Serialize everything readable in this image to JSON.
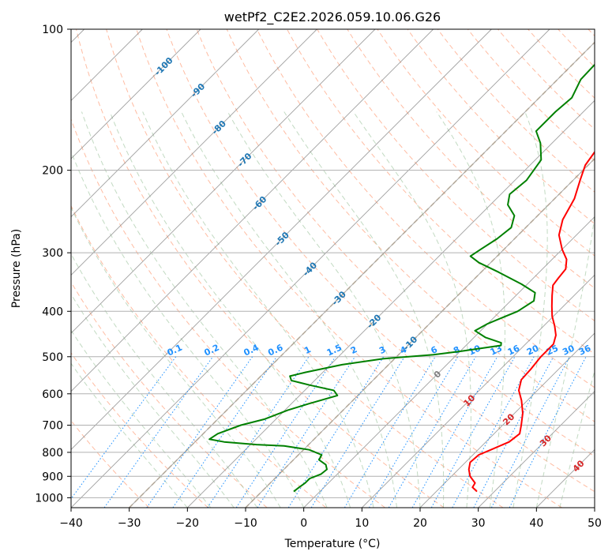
{
  "chart_data": {
    "type": "line",
    "title": "wetPf2_C2E2.2026.059.10.06.G26",
    "xlabel": "Temperature (°C)",
    "ylabel": "Pressure (hPa)",
    "xlim": [
      -40,
      50
    ],
    "ylim": [
      1050,
      100
    ],
    "x_ticks": [
      "−40",
      "−30",
      "−20",
      "−10",
      "0",
      "10",
      "20",
      "30",
      "40",
      "50"
    ],
    "x_tick_values": [
      -40,
      -30,
      -20,
      -10,
      0,
      10,
      20,
      30,
      40,
      50
    ],
    "y_ticks": [
      "100",
      "200",
      "300",
      "400",
      "500",
      "600",
      "700",
      "800",
      "900",
      "1000"
    ],
    "y_tick_values": [
      100,
      200,
      300,
      400,
      500,
      600,
      700,
      800,
      900,
      1000
    ],
    "colors": {
      "temperature": "#ff0000",
      "dewpoint": "#008000",
      "isotherm": "#808080",
      "dry_adiabat": "#ffa07a",
      "moist_adiabat": "#8fbc8f",
      "mixing_ratio": "#1e90ff",
      "hgz": "#d2b48c",
      "isotherm_label": "#1f77b4",
      "adiabat_label": "#d62728",
      "zero_label": "#808080"
    },
    "isotherm_labels": [
      {
        "text": "-100",
        "T": -100,
        "p": 120
      },
      {
        "text": "-90",
        "T": -90,
        "p": 135
      },
      {
        "text": "-80",
        "T": -80,
        "p": 162
      },
      {
        "text": "-70",
        "T": -70,
        "p": 190
      },
      {
        "text": "-60",
        "T": -60,
        "p": 235
      },
      {
        "text": "-50",
        "T": -50,
        "p": 280
      },
      {
        "text": "-40",
        "T": -40,
        "p": 325
      },
      {
        "text": "-30",
        "T": -30,
        "p": 375
      },
      {
        "text": "-20",
        "T": -20,
        "p": 420
      },
      {
        "text": "-10",
        "T": -10,
        "p": 468
      },
      {
        "text": "0",
        "T": 0,
        "p": 545
      }
    ],
    "adiabat_labels": [
      {
        "text": "10",
        "T": 10,
        "p": 620
      },
      {
        "text": "20",
        "T": 20,
        "p": 680
      },
      {
        "text": "30",
        "T": 30,
        "p": 755
      },
      {
        "text": "40",
        "T": 40,
        "p": 855
      }
    ],
    "mixing_ratio_labels": [
      "0.1",
      "0.2",
      "0.4",
      "0.6",
      "1",
      "1.5",
      "2",
      "3",
      "4",
      "6",
      "8",
      "10",
      "13",
      "16",
      "20",
      "25",
      "30",
      "36"
    ],
    "mixing_ratio_values": [
      0.1,
      0.2,
      0.4,
      0.6,
      1,
      1.5,
      2,
      3,
      4,
      6,
      8,
      10,
      13,
      16,
      20,
      25,
      30,
      36
    ],
    "series": [
      {
        "name": "Temperature",
        "color": "#ff0000",
        "points": [
          [
            970,
            27.0
          ],
          [
            950,
            25.5
          ],
          [
            930,
            25.2
          ],
          [
            900,
            23.2
          ],
          [
            870,
            21.8
          ],
          [
            840,
            20.8
          ],
          [
            810,
            21.0
          ],
          [
            790,
            22.2
          ],
          [
            760,
            24.0
          ],
          [
            730,
            24.4
          ],
          [
            700,
            23.2
          ],
          [
            660,
            21.4
          ],
          [
            620,
            19.0
          ],
          [
            590,
            16.8
          ],
          [
            560,
            15.4
          ],
          [
            530,
            15.2
          ],
          [
            500,
            14.8
          ],
          [
            470,
            14.8
          ],
          [
            450,
            13.7
          ],
          [
            430,
            11.9
          ],
          [
            410,
            9.8
          ],
          [
            390,
            8.0
          ],
          [
            370,
            6.2
          ],
          [
            352,
            4.6
          ],
          [
            340,
            4.3
          ],
          [
            325,
            4.0
          ],
          [
            310,
            2.5
          ],
          [
            295,
            0.0
          ],
          [
            275,
            -3.0
          ],
          [
            255,
            -5.0
          ],
          [
            230,
            -6.6
          ],
          [
            210,
            -8.8
          ],
          [
            195,
            -10.5
          ],
          [
            180,
            -11.3
          ],
          [
            168,
            -11.8
          ],
          [
            160,
            -12.2
          ],
          [
            145,
            -12.2
          ],
          [
            135,
            -12.4
          ],
          [
            127,
            -12.0
          ],
          [
            120,
            -11.0
          ],
          [
            113,
            -9.9
          ],
          [
            107,
            -9.9
          ],
          [
            100,
            -10.6
          ]
        ]
      },
      {
        "name": "Dewpoint",
        "color": "#008000",
        "points": [
          [
            970,
            -4.5
          ],
          [
            950,
            -4.3
          ],
          [
            930,
            -4.0
          ],
          [
            910,
            -4.0
          ],
          [
            890,
            -2.8
          ],
          [
            870,
            -2.6
          ],
          [
            850,
            -3.6
          ],
          [
            830,
            -5.6
          ],
          [
            810,
            -6.0
          ],
          [
            790,
            -9.0
          ],
          [
            775,
            -14.0
          ],
          [
            770,
            -19.0
          ],
          [
            760,
            -25.0
          ],
          [
            750,
            -28.0
          ],
          [
            730,
            -27.5
          ],
          [
            700,
            -25.0
          ],
          [
            680,
            -22.0
          ],
          [
            650,
            -19.5
          ],
          [
            630,
            -17.0
          ],
          [
            605,
            -13.5
          ],
          [
            590,
            -15.0
          ],
          [
            575,
            -20.0
          ],
          [
            562,
            -24.0
          ],
          [
            550,
            -25.0
          ],
          [
            540,
            -23.0
          ],
          [
            520,
            -18.0
          ],
          [
            505,
            -12.0
          ],
          [
            495,
            -4.0
          ],
          [
            487,
            0.0
          ],
          [
            480,
            3.0
          ],
          [
            473,
            6.0
          ],
          [
            467,
            5.6
          ],
          [
            455,
            2.0
          ],
          [
            440,
            -1.0
          ],
          [
            425,
            0.0
          ],
          [
            400,
            3.0
          ],
          [
            380,
            4.0
          ],
          [
            365,
            2.8
          ],
          [
            350,
            -1.0
          ],
          [
            330,
            -7.0
          ],
          [
            315,
            -12.0
          ],
          [
            305,
            -14.6
          ],
          [
            295,
            -14.0
          ],
          [
            280,
            -13.0
          ],
          [
            265,
            -12.5
          ],
          [
            250,
            -14.0
          ],
          [
            237,
            -17.0
          ],
          [
            225,
            -18.5
          ],
          [
            210,
            -18.0
          ],
          [
            190,
            -19.0
          ],
          [
            175,
            -22.0
          ],
          [
            165,
            -24.8
          ],
          [
            150,
            -24.8
          ],
          [
            140,
            -24.4
          ],
          [
            128,
            -26.0
          ],
          [
            117,
            -26.2
          ],
          [
            110,
            -25.8
          ],
          [
            104,
            -25.2
          ],
          [
            100,
            -25.0
          ]
        ]
      }
    ]
  }
}
